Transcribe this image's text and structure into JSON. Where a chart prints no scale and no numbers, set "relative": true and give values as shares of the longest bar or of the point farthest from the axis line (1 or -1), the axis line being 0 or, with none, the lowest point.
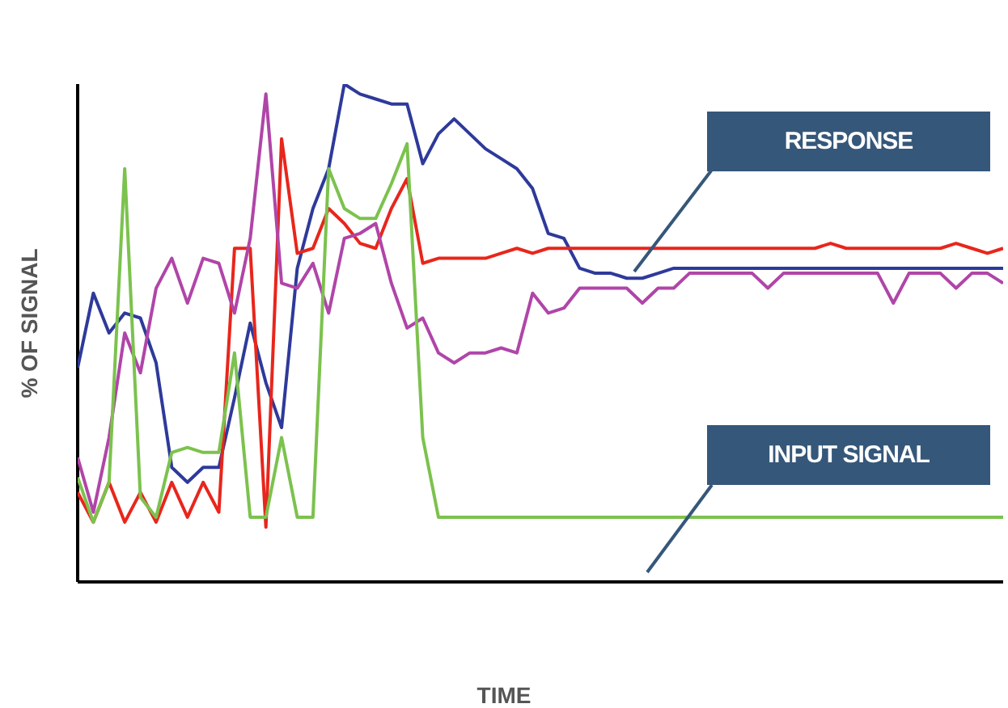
{
  "chart_data": {
    "type": "line",
    "relative": true,
    "xlabel": "TIME",
    "ylabel": "% OF SIGNAL",
    "tick_labels": false,
    "grid": false,
    "legend": false,
    "marker": "none",
    "line_style": "solid",
    "categories": [
      null,
      null,
      null,
      null,
      null,
      null,
      null,
      null,
      null,
      null,
      null,
      null,
      null,
      null,
      null,
      null,
      null,
      null,
      null,
      null,
      null,
      null,
      null,
      null,
      null,
      null,
      null,
      null,
      null,
      null,
      null,
      null,
      null,
      null,
      null,
      null,
      null,
      null,
      null,
      null,
      null,
      null,
      null,
      null,
      null,
      null,
      null,
      null,
      null,
      null,
      null,
      null,
      null,
      null,
      null,
      null,
      null,
      null,
      null,
      null
    ],
    "series": [
      {
        "color": "#2e3a9a",
        "values": [
          0.43,
          0.58,
          0.5,
          0.54,
          0.53,
          0.44,
          0.23,
          0.2,
          0.23,
          0.23,
          0.37,
          0.52,
          0.4,
          0.31,
          0.63,
          0.75,
          0.83,
          1,
          0.98,
          0.97,
          0.96,
          0.96,
          0.84,
          0.9,
          0.93,
          0.9,
          0.87,
          0.85,
          0.83,
          0.79,
          0.7,
          0.69,
          0.63,
          0.62,
          0.62,
          0.61,
          0.61,
          0.62,
          0.63,
          0.63,
          0.63,
          0.63,
          0.63,
          0.63,
          0.63,
          0.63,
          0.63,
          0.63,
          0.63,
          0.63,
          0.63,
          0.63,
          0.63,
          0.63,
          0.63,
          0.63,
          0.63,
          0.63,
          0.63,
          0.63
        ]
      },
      {
        "color": "#e8261c",
        "values": [
          0.18,
          0.12,
          0.2,
          0.12,
          0.18,
          0.12,
          0.2,
          0.13,
          0.2,
          0.14,
          0.67,
          0.67,
          0.11,
          0.89,
          0.66,
          0.67,
          0.75,
          0.72,
          0.68,
          0.67,
          0.75,
          0.81,
          0.64,
          0.65,
          0.65,
          0.65,
          0.65,
          0.66,
          0.67,
          0.66,
          0.67,
          0.67,
          0.67,
          0.67,
          0.67,
          0.67,
          0.67,
          0.67,
          0.67,
          0.67,
          0.67,
          0.67,
          0.67,
          0.67,
          0.67,
          0.67,
          0.67,
          0.67,
          0.68,
          0.67,
          0.67,
          0.67,
          0.67,
          0.67,
          0.67,
          0.67,
          0.68,
          0.67,
          0.66,
          0.67
        ]
      },
      {
        "color": "#b045a8",
        "values": [
          0.25,
          0.14,
          0.29,
          0.5,
          0.42,
          0.59,
          0.65,
          0.56,
          0.65,
          0.64,
          0.54,
          0.69,
          0.98,
          0.6,
          0.59,
          0.64,
          0.54,
          0.69,
          0.7,
          0.72,
          0.6,
          0.51,
          0.53,
          0.46,
          0.44,
          0.46,
          0.46,
          0.47,
          0.46,
          0.58,
          0.54,
          0.55,
          0.59,
          0.59,
          0.59,
          0.59,
          0.56,
          0.59,
          0.59,
          0.62,
          0.62,
          0.62,
          0.62,
          0.62,
          0.59,
          0.62,
          0.62,
          0.62,
          0.62,
          0.62,
          0.62,
          0.62,
          0.56,
          0.62,
          0.62,
          0.62,
          0.59,
          0.62,
          0.62,
          0.6
        ]
      },
      {
        "color": "#7cc24e",
        "values": [
          0.21,
          0.12,
          0.2,
          0.83,
          0.17,
          0.13,
          0.26,
          0.27,
          0.26,
          0.26,
          0.46,
          0.13,
          0.13,
          0.29,
          0.13,
          0.13,
          0.83,
          0.75,
          0.73,
          0.73,
          0.8,
          0.88,
          0.29,
          0.13,
          0.13,
          0.13,
          0.13,
          0.13,
          0.13,
          0.13,
          0.13,
          0.13,
          0.13,
          0.13,
          0.13,
          0.13,
          0.13,
          0.13,
          0.13,
          0.13,
          0.13,
          0.13,
          0.13,
          0.13,
          0.13,
          0.13,
          0.13,
          0.13,
          0.13,
          0.13,
          0.13,
          0.13,
          0.13,
          0.13,
          0.13,
          0.13,
          0.13,
          0.13,
          0.13,
          0.13
        ]
      }
    ],
    "annotations": [
      "RESPONSE",
      "INPUT SIGNAL"
    ]
  }
}
